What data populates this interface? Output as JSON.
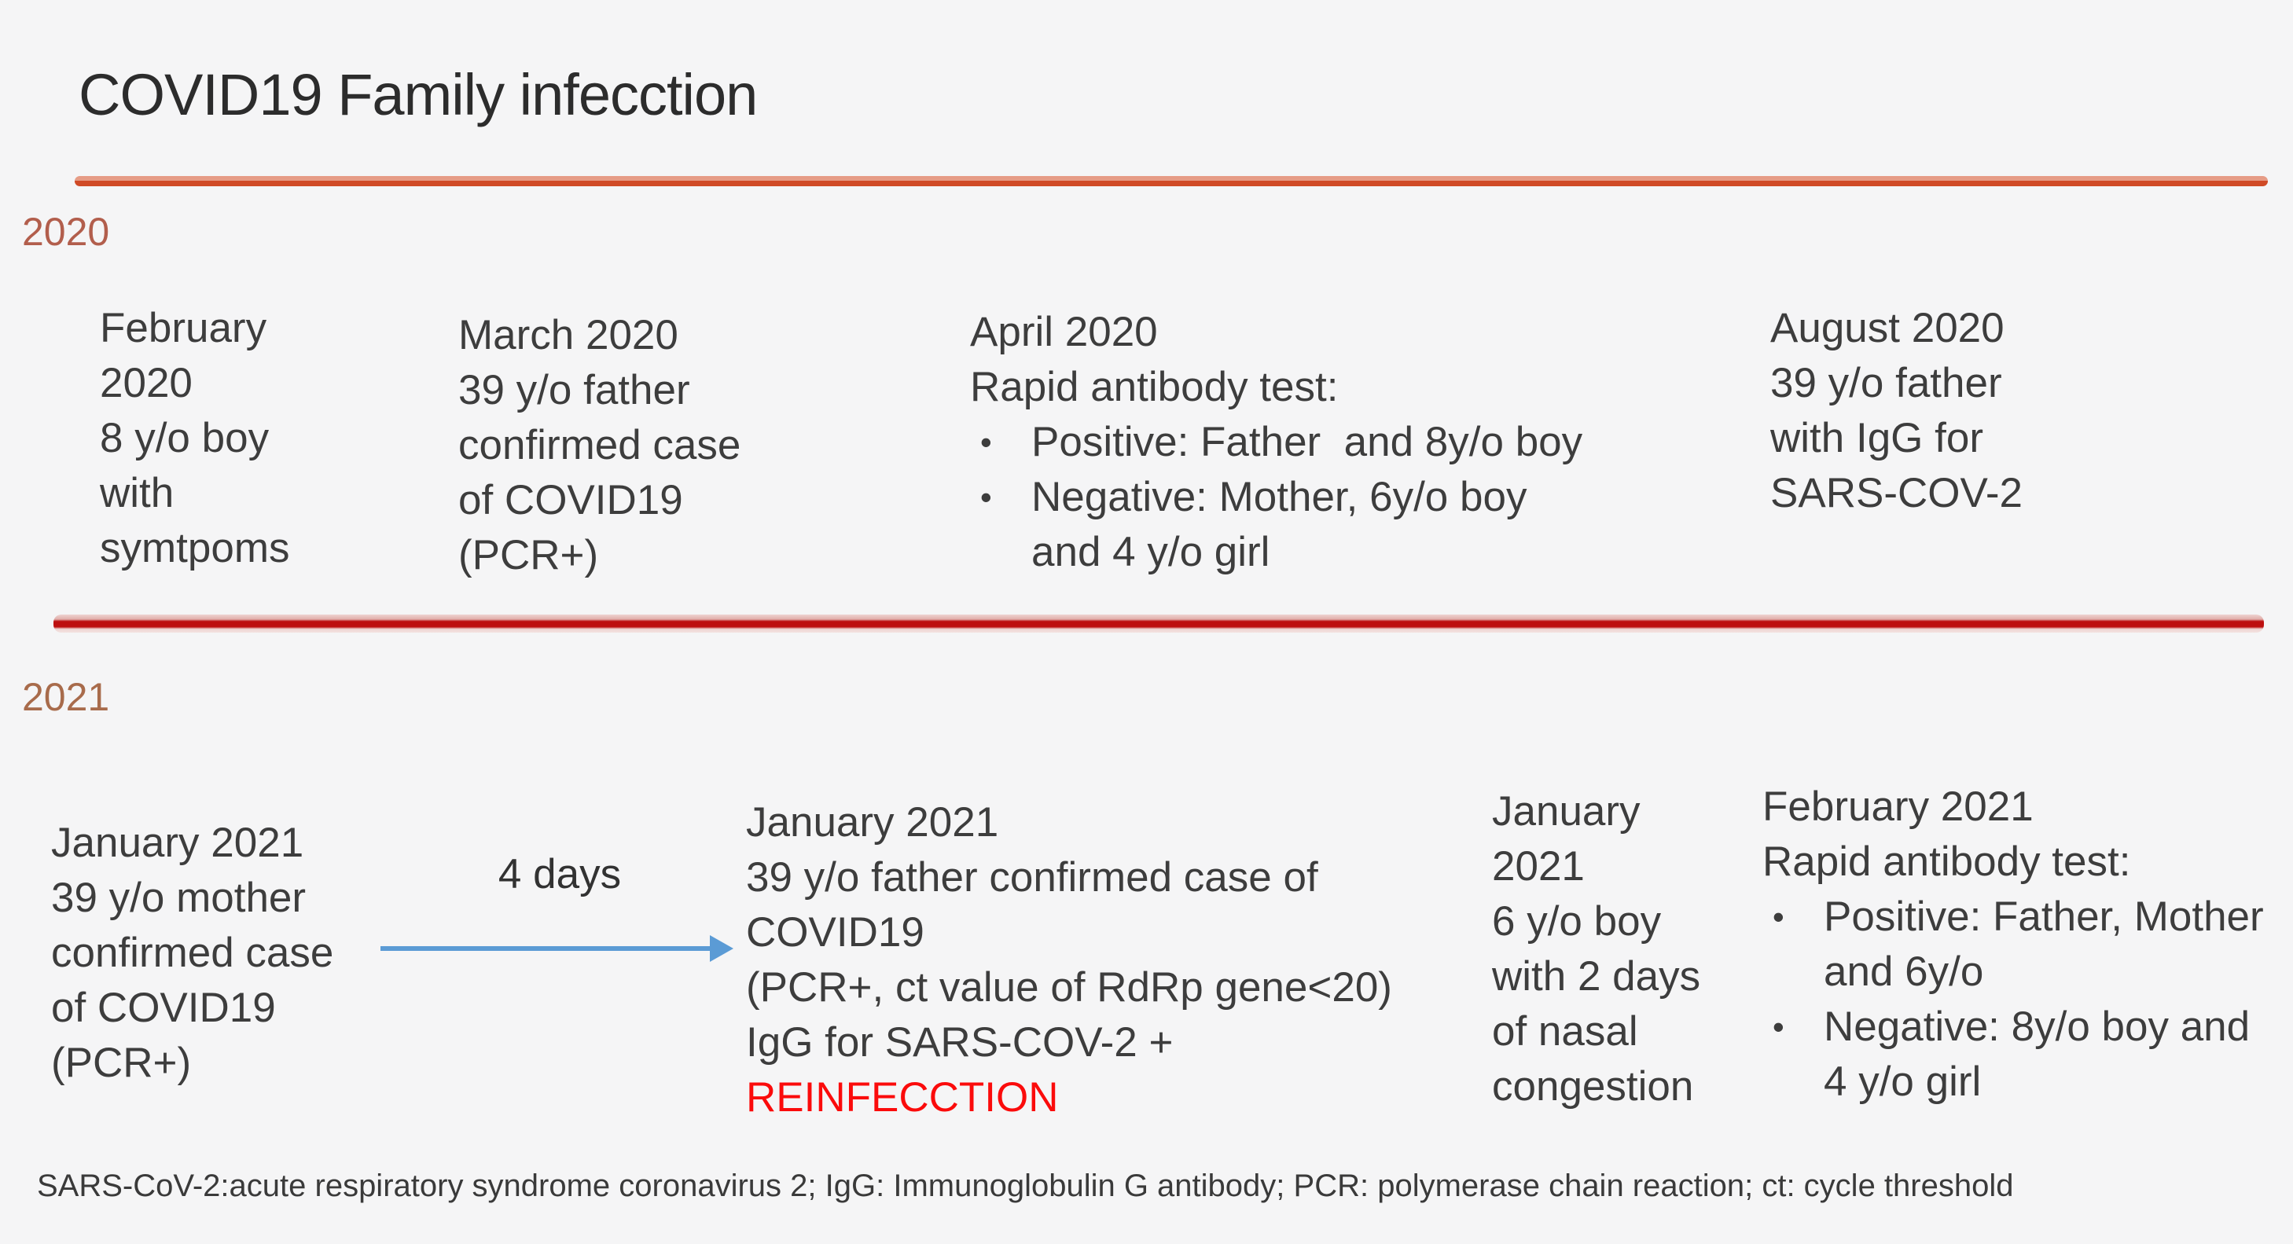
{
  "slide": {
    "title": "COVID19 Family infecction",
    "footer": "SARS-CoV-2:acute respiratory syndrome coronavirus 2; IgG:  Immunoglobulin G antibody; PCR: polymerase chain reaction; ct: cycle threshold"
  },
  "colors": {
    "background": "#f5f5f6",
    "title_text": "#2c2c2c",
    "body_text": "#3d3d3d",
    "divider_2020": "#d04a26",
    "divider_2021": "#bd0f0f",
    "year_2020_label": "#b25e4c",
    "year_2021_label": "#a86b4b",
    "arrow_blue": "#5b9bd5",
    "reinfection_red": "#fb0b0b"
  },
  "timeline_2020": {
    "year": "2020",
    "events": {
      "february": {
        "text": "February\n2020\n8 y/o boy\nwith\nsymtpoms"
      },
      "march": {
        "text": "March 2020\n39 y/o father\nconfirmed case\nof COVID19\n(PCR+)"
      },
      "april": {
        "heading": "April 2020\nRapid antibody test:",
        "bullet_glyph": "•",
        "bullets": [
          "Positive: Father  and 8y/o boy",
          "Negative: Mother, 6y/o boy\nand 4 y/o girl"
        ]
      },
      "august": {
        "text": "August 2020\n39 y/o father\nwith IgG for\nSARS-COV-2"
      }
    }
  },
  "timeline_2021": {
    "year": "2021",
    "events": {
      "january_mother": {
        "text": "January 2021\n39 y/o mother\nconfirmed case\nof COVID19\n(PCR+)"
      },
      "transfer_label": "4 days",
      "january_father": {
        "text": "January 2021\n39 y/o father confirmed case of\nCOVID19\n(PCR+, ct value of RdRp gene<20)\nIgG for SARS-COV-2 +",
        "highlight": "REINFECCTION"
      },
      "january_boy": {
        "text": "January\n2021\n6 y/o boy\nwith 2 days\nof nasal\ncongestion"
      },
      "february": {
        "heading": "February 2021\nRapid antibody test:",
        "bullet_glyph": "•",
        "bullets": [
          "Positive: Father, Mother\nand 6y/o",
          "Negative: 8y/o boy and\n4 y/o girl"
        ]
      }
    }
  }
}
